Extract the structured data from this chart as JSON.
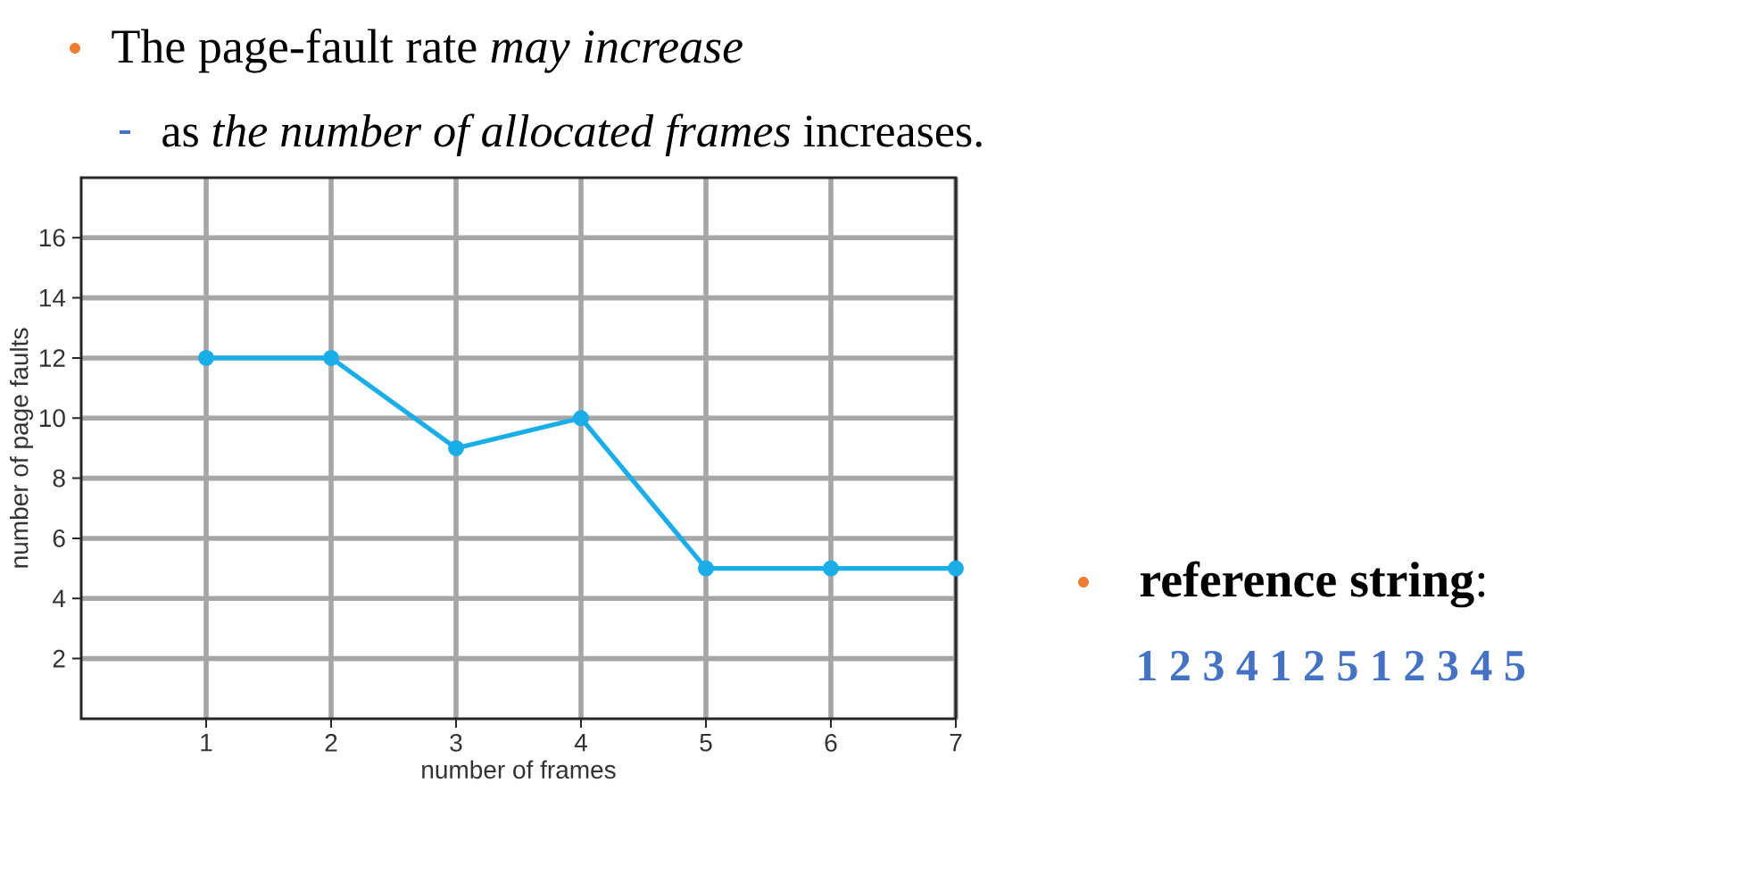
{
  "chart_data": {
    "type": "line",
    "title": "The page-fault rate *may increase*",
    "subtitle": "as *the number of allocated frames* increases.",
    "xlabel": "number of frames",
    "ylabel": "number of page faults",
    "x": [
      1,
      2,
      3,
      4,
      5,
      6,
      7
    ],
    "series": [
      {
        "color": "#1aaee8",
        "values": [
          12,
          12,
          9,
          10,
          5,
          5,
          5
        ]
      }
    ],
    "xlim": [
      0,
      7
    ],
    "ylim": [
      0,
      18
    ],
    "xticks": [
      1,
      2,
      3,
      4,
      5,
      6,
      7
    ],
    "yticks": [
      2,
      4,
      6,
      8,
      10,
      12,
      14,
      16
    ],
    "grid": true,
    "marker": "circle",
    "line_style": "solid",
    "annotations": [
      "**reference string**:",
      "1 2 3 4 1 2 5 1 2 3 4 5"
    ]
  }
}
